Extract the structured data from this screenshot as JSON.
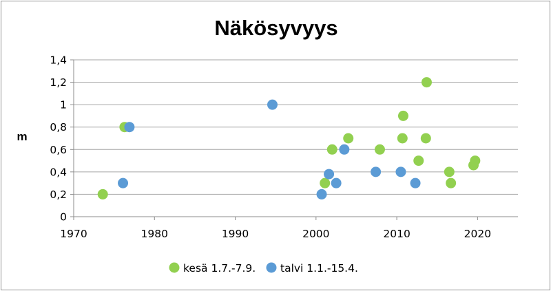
{
  "chart_data": {
    "type": "scatter",
    "title": "Näkösyvyys",
    "xlabel": "",
    "ylabel": "m",
    "xlim": [
      1970,
      2025
    ],
    "ylim": [
      0,
      1.4
    ],
    "x_ticks": [
      1970,
      1980,
      1990,
      2000,
      2010,
      2020
    ],
    "y_ticks": [
      0,
      0.2,
      0.4,
      0.6,
      0.8,
      1.0,
      1.2,
      1.4
    ],
    "y_tick_labels": [
      "0",
      "0,2",
      "0,4",
      "0,6",
      "0,8",
      "1",
      "1,2",
      "1,4"
    ],
    "grid": "horizontal",
    "legend_position": "bottom",
    "series": [
      {
        "name": "kesä 1.7.-7.9.",
        "color": "#92d050",
        "points": [
          [
            1973.6,
            0.2
          ],
          [
            1976.3,
            0.8
          ],
          [
            2001.1,
            0.3
          ],
          [
            2002.0,
            0.6
          ],
          [
            2004.0,
            0.7
          ],
          [
            2007.9,
            0.6
          ],
          [
            2010.8,
            0.9
          ],
          [
            2010.7,
            0.7
          ],
          [
            2012.7,
            0.5
          ],
          [
            2013.7,
            1.2
          ],
          [
            2013.6,
            0.7
          ],
          [
            2016.5,
            0.4
          ],
          [
            2016.7,
            0.3
          ],
          [
            2019.5,
            0.46
          ],
          [
            2019.7,
            0.5
          ]
        ]
      },
      {
        "name": "talvi 1.1.-15.4.",
        "color": "#5b9bd5",
        "points": [
          [
            1976.1,
            0.3
          ],
          [
            1976.9,
            0.8
          ],
          [
            1994.6,
            1.0
          ],
          [
            2000.7,
            0.2
          ],
          [
            2001.6,
            0.38
          ],
          [
            2002.5,
            0.3
          ],
          [
            2003.5,
            0.6
          ],
          [
            2007.4,
            0.4
          ],
          [
            2010.5,
            0.4
          ],
          [
            2012.3,
            0.3
          ]
        ]
      }
    ]
  }
}
